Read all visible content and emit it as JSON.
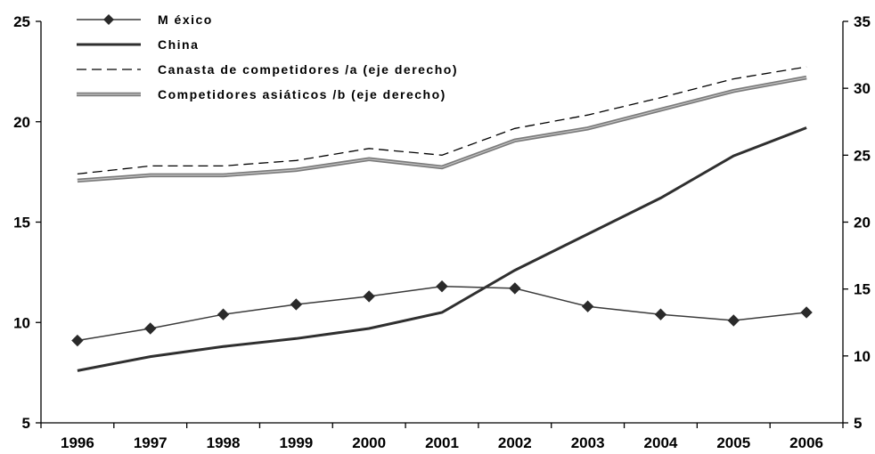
{
  "chart_data": {
    "type": "line",
    "x": [
      "1996",
      "1997",
      "1998",
      "1999",
      "2000",
      "2001",
      "2002",
      "2003",
      "2004",
      "2005",
      "2006"
    ],
    "left_axis": {
      "min": 5,
      "max": 25,
      "ticks": [
        "5",
        "10",
        "15",
        "20",
        "25"
      ]
    },
    "right_axis": {
      "min": 5,
      "max": 35,
      "ticks": [
        "5",
        "10",
        "15",
        "20",
        "25",
        "30",
        "35"
      ]
    },
    "series": [
      {
        "name": "M éxico",
        "axis": "left",
        "style": "line-diamond",
        "color": "#3a3a3a",
        "values": [
          9.1,
          9.7,
          10.4,
          10.9,
          11.3,
          11.8,
          11.7,
          10.8,
          10.4,
          10.1,
          10.5
        ]
      },
      {
        "name": "China",
        "axis": "left",
        "style": "thick-line",
        "color": "#2f2f2f",
        "values": [
          7.6,
          8.3,
          8.8,
          9.2,
          9.7,
          10.5,
          12.6,
          14.4,
          16.2,
          18.3,
          19.7
        ]
      },
      {
        "name": "Canasta de competidores /a (eje derecho)",
        "axis": "right",
        "style": "dashed",
        "color": "#000000",
        "values": [
          23.6,
          24.2,
          24.2,
          24.6,
          25.5,
          25.0,
          27.0,
          28.0,
          29.3,
          30.7,
          31.6
        ]
      },
      {
        "name": "Competidores asiáticos /b (eje derecho)",
        "axis": "right",
        "style": "double-gray",
        "color": "#7a7a7a",
        "values": [
          23.1,
          23.5,
          23.5,
          23.9,
          24.7,
          24.1,
          26.1,
          27.0,
          28.4,
          29.8,
          30.8
        ]
      }
    ],
    "grid": false,
    "legend_position": "top-left"
  }
}
